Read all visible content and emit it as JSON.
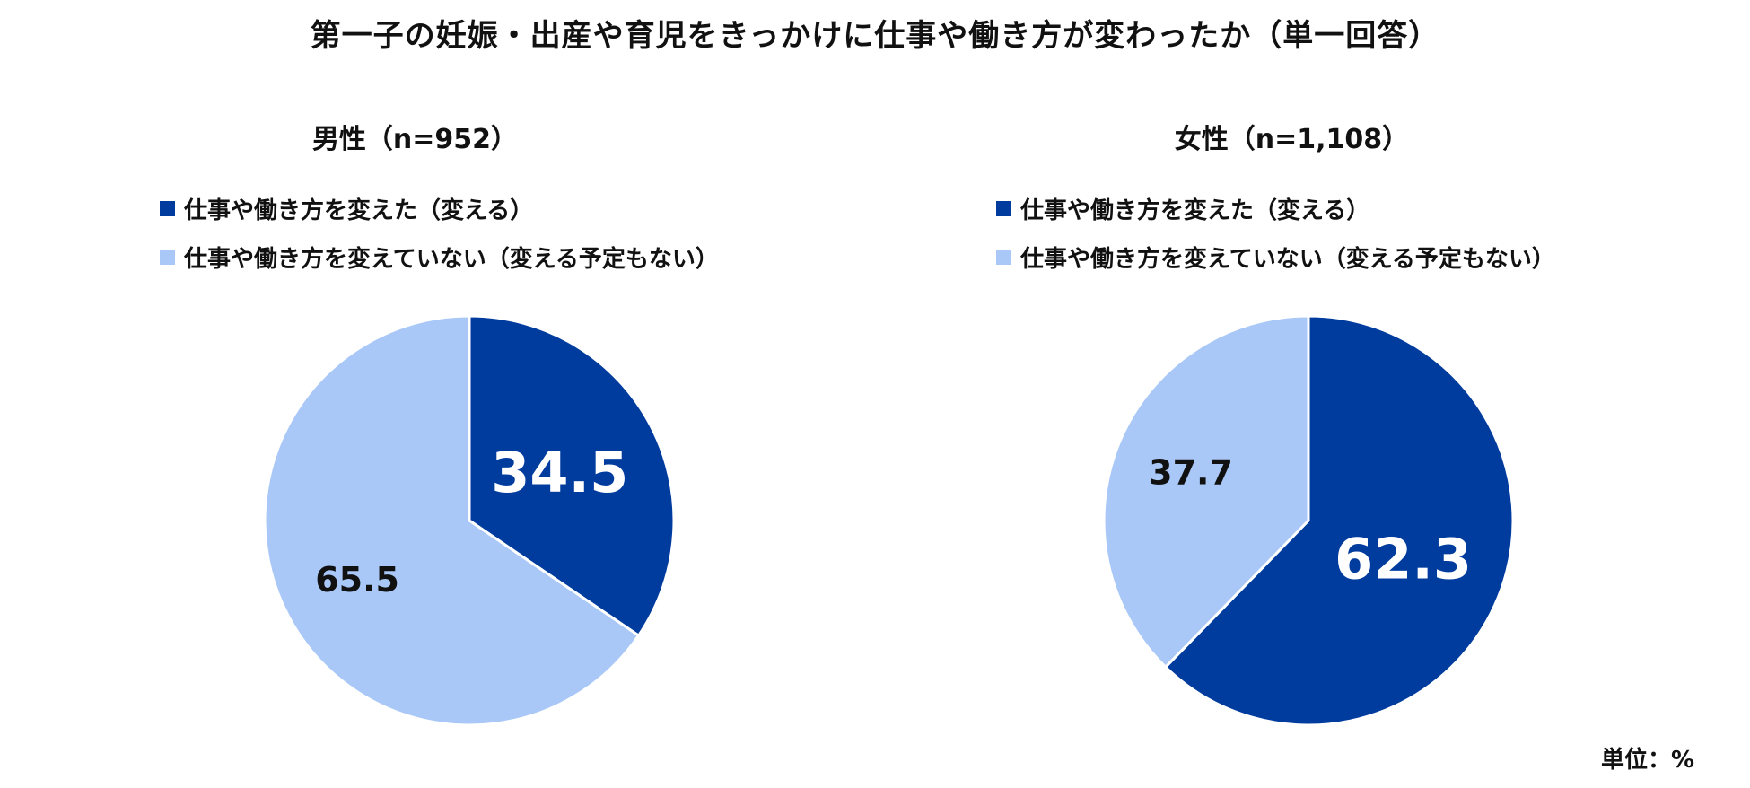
{
  "title": "第一子の妊娠・出産や育児をきっかけに仕事や働き方が変わったか（単一回答）",
  "unit_label": "単位：%",
  "colors": {
    "changed": "#003b9e",
    "not_changed": "#a9c8f7"
  },
  "chart_data": [
    {
      "type": "pie",
      "title": "男性（n=952）",
      "legend": [
        "仕事や働き方を変えた（変える）",
        "仕事や働き方を変えていない（変える予定もない）"
      ],
      "slices": [
        {
          "label": "仕事や働き方を変えた（変える）",
          "value": 34.5,
          "display": "34.5"
        },
        {
          "label": "仕事や働き方を変えていない（変える予定もない）",
          "value": 65.5,
          "display": "65.5"
        }
      ]
    },
    {
      "type": "pie",
      "title": "女性（n=1,108）",
      "legend": [
        "仕事や働き方を変えた（変える）",
        "仕事や働き方を変えていない（変える予定もない）"
      ],
      "slices": [
        {
          "label": "仕事や働き方を変えた（変える）",
          "value": 62.3,
          "display": "62.3"
        },
        {
          "label": "仕事や働き方を変えていない（変える予定もない）",
          "value": 37.7,
          "display": "37.7"
        }
      ]
    }
  ]
}
